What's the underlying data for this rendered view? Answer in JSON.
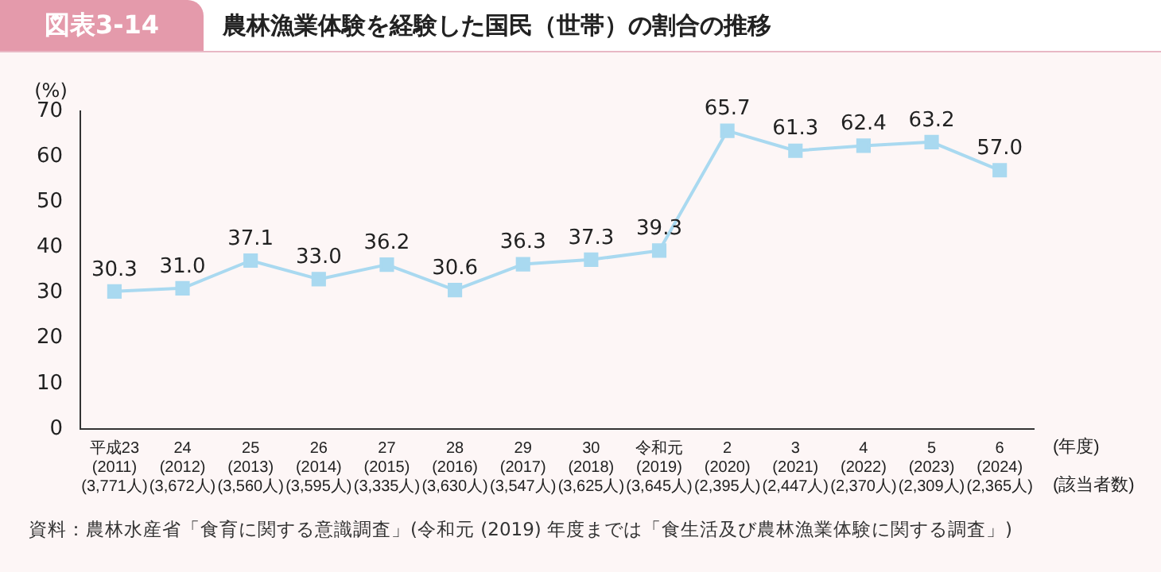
{
  "chart_data": {
    "type": "line",
    "title": "農林漁業体験を経験した国民（世帯）の割合の推移",
    "ylabel": "(%)",
    "xlabel": "(年度)\n\n(該当者数)",
    "annotations": [
      "図表3-14",
      "資料：農林水産省「食育に関する意識調査」(令和元 (2019) 年度までは「食生活及び農林漁業体験に関する調査」)"
    ],
    "categories": [
      "平成23\n(2011)\n(3,771人)",
      "24\n(2012)\n(3,672人)",
      "25\n(2013)\n(3,560人)",
      "26\n(2014)\n(3,595人)",
      "27\n(2015)\n(3,335人)",
      "28\n(2016)\n(3,630人)",
      "29\n(2017)\n(3,547人)",
      "30\n(2018)\n(3,625人)",
      "令和元\n(2019)\n(3,645人)",
      "2\n(2020)\n(2,395人)",
      "3\n(2021)\n(2,447人)",
      "4\n(2022)\n(2,370人)",
      "5\n(2023)\n(2,309人)",
      "6\n(2024)\n(2,365人)"
    ],
    "series": [
      {
        "color": "#a9d9f0",
        "values": [
          30.3,
          31.0,
          37.1,
          33.0,
          36.2,
          30.6,
          36.3,
          37.3,
          39.3,
          65.7,
          61.3,
          62.4,
          63.2,
          57.0
        ],
        "value_labels": [
          "30.3",
          "31.0",
          "37.1",
          "33.0",
          "36.2",
          "30.6",
          "36.3",
          "37.3",
          "39.3",
          "65.7",
          "61.3",
          "62.4",
          "63.2",
          "57.0"
        ]
      }
    ],
    "ylim": [
      0,
      70
    ],
    "yticks": [
      0,
      10,
      20,
      30,
      40,
      50,
      60,
      70
    ],
    "grid": false,
    "legend": false,
    "marker": "square",
    "line_style": "solid"
  }
}
